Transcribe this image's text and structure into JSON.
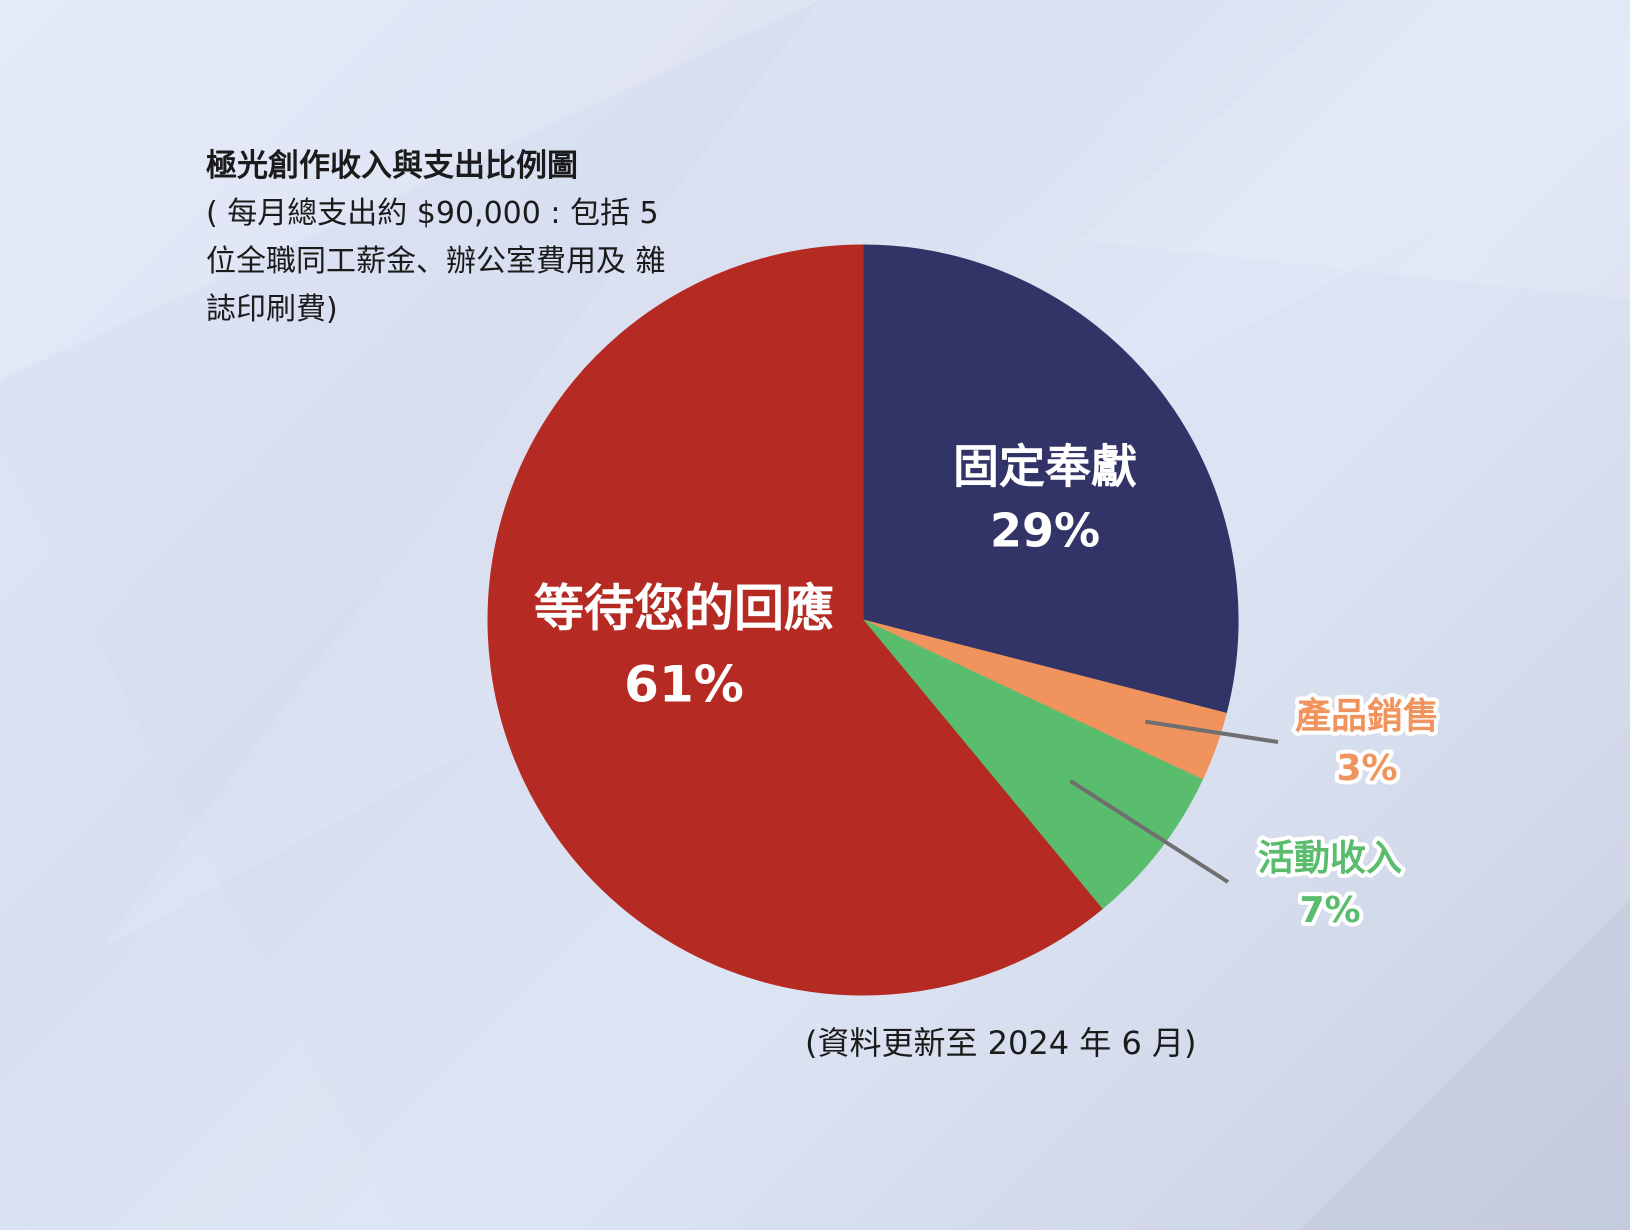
{
  "title": "極光創作收入與支出比例圖",
  "subtitle": "( 每月總支出約 $90,000 : 包括 5 位全職同工薪金、辦公室費用及 雜誌印刷費)",
  "footnote": "(資料更新至 2024 年 6 月)",
  "chart_data": {
    "type": "pie",
    "title": "極光創作收入與支出比例圖",
    "subtitle": "( 每月總支出約 $90,000 : 包括 5 位全職同工薪金、辦公室費用及 雜誌印刷費)",
    "slices": [
      {
        "label": "固定奉獻",
        "value": 29,
        "display": "29%",
        "color": "#323468",
        "label_color": "#ffffff"
      },
      {
        "label": "產品銷售",
        "value": 3,
        "display": "3%",
        "color": "#f0935c",
        "label_color": "#f0935c"
      },
      {
        "label": "活動收入",
        "value": 7,
        "display": "7%",
        "color": "#5abd6e",
        "label_color": "#5abd6e"
      },
      {
        "label": "等待您的回應",
        "value": 61,
        "display": "61%",
        "color": "#b52a22",
        "label_color": "#ffffff"
      }
    ],
    "start_angle": "12 o'clock",
    "direction": "clockwise",
    "legend": "none"
  }
}
